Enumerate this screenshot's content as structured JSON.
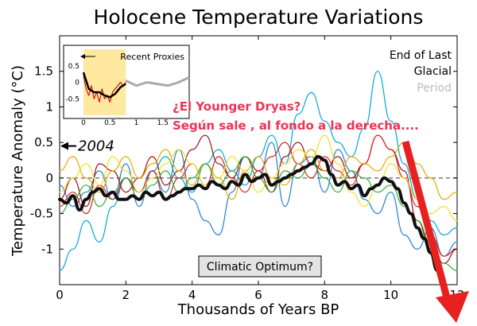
{
  "chart_data": {
    "type": "line",
    "title": "Holocene Temperature Variations",
    "xlabel": "Thousands of Years BP",
    "ylabel": "Temperature Anomaly (°C)",
    "xlim": [
      0,
      12
    ],
    "ylim": [
      -1.5,
      2.0
    ],
    "x_ticks": [
      "0",
      "2",
      "4",
      "6",
      "8",
      "10",
      "12"
    ],
    "y_ticks": [
      "-1",
      "-0.5",
      "0",
      "0.5",
      "1",
      "1.5"
    ],
    "x_tick_values": [
      0,
      2,
      4,
      6,
      8,
      10,
      12
    ],
    "y_tick_values": [
      -1,
      -0.5,
      0,
      0.5,
      1,
      1.5
    ],
    "zero_line": {
      "y": 0,
      "style": "dashed",
      "color": "#777777"
    },
    "legend": {
      "placement": "top-right",
      "line1": "End of Last",
      "line2": "Glacial",
      "line3": "Period",
      "line3_color": "#bbbbbb"
    },
    "series": [
      {
        "color": "#1f7fd8",
        "x": [
          0,
          0.4,
          0.8,
          1.2,
          1.6,
          2,
          2.4,
          2.8,
          3.2,
          3.6,
          4,
          4.4,
          4.8,
          5.2,
          5.6,
          6,
          6.4,
          6.8,
          7.2,
          7.6,
          8,
          8.4,
          8.8,
          9.2,
          9.6,
          10,
          10.4,
          10.8,
          11.2,
          11.6,
          12
        ],
        "values": [
          -0.1,
          -0.4,
          -0.2,
          0.1,
          -0.3,
          0.2,
          -0.4,
          0.1,
          -0.2,
          0.4,
          -0.3,
          -0.6,
          -0.8,
          -0.2,
          0.3,
          0.0,
          0.5,
          -0.4,
          0.2,
          0.3,
          -0.2,
          0.4,
          0.1,
          -0.3,
          -0.5,
          -0.2,
          -0.8,
          -1.0,
          -0.7,
          -1.1,
          -0.9
        ]
      },
      {
        "color": "#00a8d8",
        "x": [
          0,
          0.4,
          0.8,
          1.2,
          1.6,
          2,
          2.4,
          2.8,
          3.2,
          3.6,
          4,
          4.4,
          4.8,
          5.2,
          5.6,
          6,
          6.4,
          6.8,
          7.2,
          7.6,
          8,
          8.4,
          8.8,
          9.2,
          9.6,
          10,
          10.4,
          10.8,
          11.2,
          11.6,
          12
        ],
        "values": [
          -1.3,
          -1.0,
          -0.6,
          -0.9,
          -0.4,
          0.0,
          -0.2,
          0.1,
          0.3,
          0.0,
          -0.2,
          0.2,
          0.4,
          0.1,
          -0.1,
          0.3,
          0.6,
          0.2,
          0.9,
          1.2,
          0.8,
          0.5,
          0.3,
          0.7,
          1.5,
          0.8,
          0.2,
          -0.3,
          -0.6,
          -0.8,
          -0.7
        ]
      },
      {
        "color": "#a01010",
        "x": [
          0,
          0.4,
          0.8,
          1.2,
          1.6,
          2,
          2.4,
          2.8,
          3.2,
          3.6,
          4,
          4.4,
          4.8,
          5.2,
          5.6,
          6,
          6.4,
          6.8,
          7.2,
          7.6,
          8,
          8.4,
          8.8,
          9.2,
          9.6,
          10,
          10.4,
          10.8,
          11.2,
          11.6,
          12
        ],
        "values": [
          -0.3,
          0.0,
          -0.4,
          0.2,
          0.1,
          -0.2,
          0.0,
          0.3,
          -0.1,
          0.1,
          0.4,
          0.6,
          0.2,
          0.0,
          0.3,
          0.1,
          -0.2,
          0.3,
          0.5,
          0.2,
          0.1,
          0.3,
          0.0,
          0.2,
          0.6,
          0.4,
          0.1,
          -0.6,
          -1.0,
          -1.2,
          -1.0
        ]
      },
      {
        "color": "#e02020",
        "x": [
          0,
          0.4,
          0.8,
          1.2,
          1.6,
          2,
          2.4,
          2.8,
          3.2,
          3.6,
          4,
          4.4,
          4.8,
          5.2,
          5.6,
          6,
          6.4,
          6.8,
          7.2,
          7.6,
          8,
          8.4,
          8.8,
          9.2,
          9.6,
          10,
          10.4,
          10.8,
          11.2,
          11.6,
          12
        ],
        "values": [
          -0.4,
          -0.2,
          -0.5,
          -0.1,
          -0.3,
          0.0,
          -0.2,
          0.1,
          -0.3,
          0.0,
          0.2,
          -0.1,
          0.3,
          0.0,
          -0.2,
          0.1,
          0.3,
          0.5,
          0.2,
          0.0,
          0.3,
          0.1,
          -0.1,
          0.2,
          0.6,
          0.4,
          0.0,
          -0.4,
          -0.8,
          -1.1,
          -1.0
        ]
      },
      {
        "color": "#e8a800",
        "x": [
          0,
          0.4,
          0.8,
          1.2,
          1.6,
          2,
          2.4,
          2.8,
          3.2,
          3.6,
          4,
          4.4,
          4.8,
          5.2,
          5.6,
          6,
          6.4,
          6.8,
          7.2,
          7.6,
          8,
          8.4,
          8.8,
          9.2,
          9.6,
          10,
          10.4,
          10.8,
          11.2,
          11.6,
          12
        ],
        "values": [
          0.1,
          0.3,
          0.0,
          -0.2,
          0.1,
          0.3,
          0.0,
          0.2,
          0.4,
          0.1,
          -0.1,
          0.2,
          0.0,
          -0.3,
          0.1,
          0.3,
          0.0,
          -0.1,
          0.2,
          0.4,
          0.1,
          0.0,
          0.3,
          0.2,
          0.1,
          0.3,
          0.5,
          0.2,
          0.0,
          -0.3,
          -0.2
        ]
      },
      {
        "color": "#f0e020",
        "x": [
          0,
          0.4,
          0.8,
          1.2,
          1.6,
          2,
          2.4,
          2.8,
          3.2,
          3.6,
          4,
          4.4,
          4.8,
          5.2,
          5.6,
          6,
          6.4,
          6.8,
          7.2,
          7.6,
          8,
          8.4,
          8.8,
          9.2,
          9.6,
          10,
          10.4,
          10.8,
          11.2,
          11.6,
          12
        ],
        "values": [
          -0.2,
          0.0,
          0.2,
          -0.1,
          0.3,
          0.1,
          -0.2,
          0.0,
          0.2,
          0.4,
          0.2,
          -0.1,
          0.0,
          0.3,
          0.1,
          -0.2,
          0.0,
          0.2,
          0.4,
          0.3,
          0.6,
          0.2,
          -0.2,
          -0.4,
          -0.1,
          0.2,
          0.0,
          -0.3,
          -0.5,
          -0.4,
          -0.6
        ]
      },
      {
        "color": "#30b030",
        "x": [
          0,
          0.4,
          0.8,
          1.2,
          1.6,
          2,
          2.4,
          2.8,
          3.2,
          3.6,
          4,
          4.4,
          4.8,
          5.2,
          5.6,
          6,
          6.4,
          6.8,
          7.2,
          7.6,
          8,
          8.4,
          8.8,
          9.2,
          9.6,
          10,
          10.4,
          10.8,
          11.2,
          11.6,
          12
        ],
        "values": [
          -0.5,
          -0.3,
          -0.1,
          -0.4,
          -0.2,
          0.0,
          -0.3,
          -0.1,
          0.1,
          -0.2,
          0.0,
          0.2,
          -0.1,
          0.1,
          0.3,
          0.0,
          -0.2,
          0.1,
          0.0,
          0.2,
          0.0,
          -0.2,
          0.1,
          0.0,
          -0.2,
          -0.1,
          -0.4,
          -0.6,
          -0.9,
          -1.2,
          -1.3
        ]
      },
      {
        "color": "#101010",
        "width": 4,
        "x": [
          0,
          0.2,
          0.4,
          0.6,
          0.8,
          1,
          1.2,
          1.4,
          1.6,
          1.8,
          2,
          2.2,
          2.4,
          2.6,
          2.8,
          3,
          3.2,
          3.4,
          3.6,
          3.8,
          4,
          4.2,
          4.4,
          4.6,
          4.8,
          5,
          5.2,
          5.4,
          5.6,
          5.8,
          6,
          6.2,
          6.4,
          6.6,
          6.8,
          7,
          7.2,
          7.4,
          7.6,
          7.8,
          8,
          8.2,
          8.4,
          8.6,
          8.8,
          9,
          9.2,
          9.4,
          9.6,
          9.8,
          10,
          10.2,
          10.4,
          10.6,
          10.8,
          11,
          11.2,
          11.4,
          11.6
        ],
        "values": [
          -0.3,
          -0.35,
          -0.25,
          -0.45,
          -0.3,
          -0.2,
          -0.15,
          -0.25,
          -0.2,
          -0.3,
          -0.3,
          -0.25,
          -0.3,
          -0.2,
          -0.25,
          -0.2,
          -0.3,
          -0.25,
          -0.2,
          -0.15,
          -0.15,
          -0.1,
          -0.15,
          -0.05,
          -0.1,
          -0.15,
          -0.05,
          -0.1,
          0.05,
          -0.05,
          0.0,
          0.05,
          -0.1,
          -0.05,
          0.0,
          0.05,
          0.1,
          0.15,
          0.2,
          0.3,
          0.25,
          0.05,
          -0.1,
          -0.05,
          -0.15,
          -0.1,
          -0.25,
          -0.15,
          -0.1,
          0.0,
          -0.05,
          -0.15,
          -0.35,
          -0.5,
          -0.7,
          -0.85,
          -1.05,
          -1.3,
          -1.5
        ]
      }
    ],
    "annotations": {
      "marker_2004": "2004",
      "marker_2004_y": 0.45,
      "spanish_line1": "¿El Younger Dryas?",
      "spanish_line2": "Según sale , al fondo a la derecha....",
      "optimum_box": "Climatic Optimum?",
      "red_arrow_color": "#e82020"
    },
    "inset": {
      "title": "Recent Proxies",
      "xlim": [
        0,
        2
      ],
      "ylim": [
        -1,
        1
      ],
      "x_ticks": [
        "0",
        "0.5",
        "1",
        "1.5"
      ],
      "y_ticks": [
        "0.5",
        "0",
        "-0.5"
      ],
      "x_tick_values": [
        0,
        0.5,
        1,
        1.5
      ],
      "y_tick_values": [
        0.5,
        0,
        -0.5
      ],
      "highlight_range": [
        0,
        0.8
      ],
      "highlight_color": "#ffe8a0",
      "gray_series": {
        "color": "#aaaaaa",
        "x": [
          0.8,
          1.0,
          1.2,
          1.4,
          1.6,
          1.8,
          2.0
        ],
        "values": [
          0.05,
          -0.1,
          0.0,
          -0.05,
          -0.1,
          0.0,
          0.15
        ]
      },
      "red_series": {
        "color": "#d81010",
        "x": [
          0,
          0.05,
          0.1,
          0.15,
          0.2,
          0.25,
          0.3,
          0.35,
          0.4,
          0.45,
          0.5,
          0.55,
          0.6,
          0.65,
          0.7,
          0.75,
          0.8
        ],
        "values": [
          0.2,
          -0.2,
          -0.4,
          -0.1,
          -0.5,
          -0.3,
          -0.6,
          -0.2,
          -0.5,
          -0.4,
          -0.6,
          -0.3,
          -0.2,
          -0.1,
          0.0,
          -0.1,
          0.0
        ]
      },
      "black_series": {
        "color": "#000000",
        "x": [
          0,
          0.1,
          0.2,
          0.3,
          0.4,
          0.5,
          0.6,
          0.7,
          0.8
        ],
        "values": [
          0.3,
          -0.2,
          -0.3,
          -0.3,
          -0.4,
          -0.45,
          -0.35,
          -0.15,
          -0.05
        ]
      }
    }
  }
}
